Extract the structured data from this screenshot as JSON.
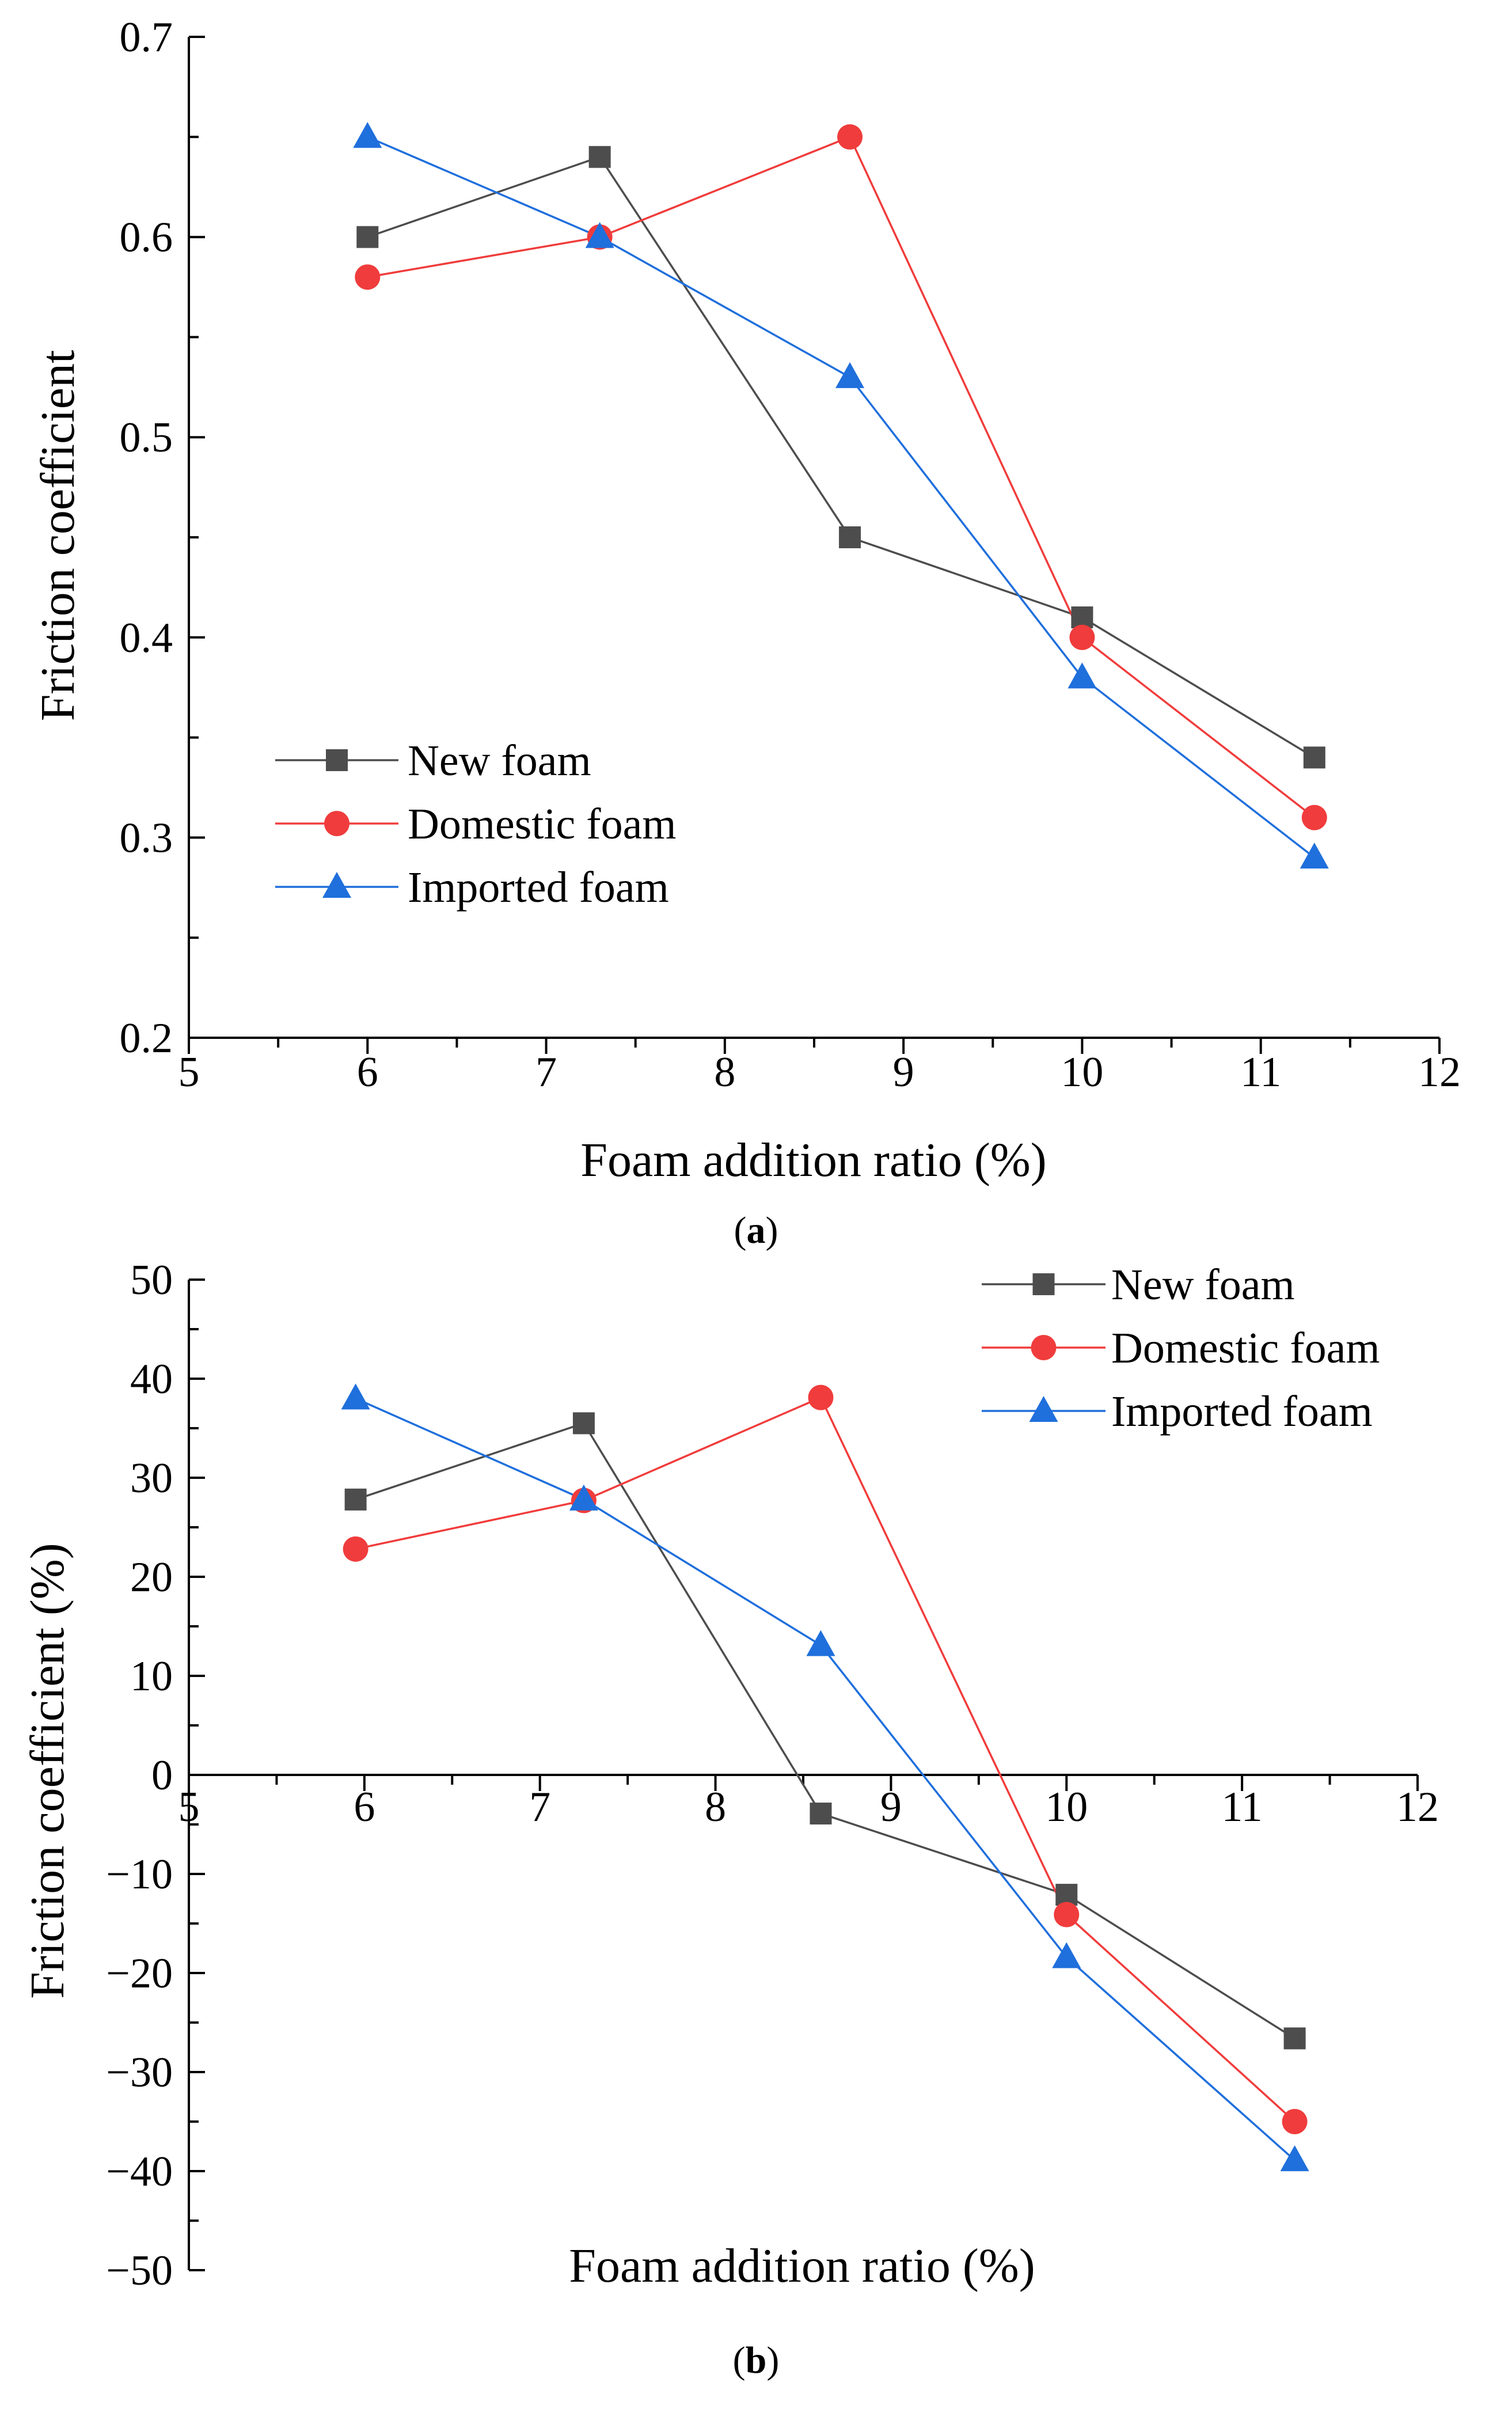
{
  "chart_data": [
    {
      "panel": "a",
      "type": "line",
      "caption_open": "(",
      "caption_letter": "a",
      "caption_close": ")",
      "xlabel": "Foam addition ratio (%)",
      "ylabel": "Friction coefficient",
      "xlim": [
        5,
        12
      ],
      "ylim": [
        0.2,
        0.7
      ],
      "xticks": [
        5,
        6,
        7,
        8,
        9,
        10,
        11,
        12
      ],
      "xtick_labels": [
        "5",
        "6",
        "7",
        "8",
        "9",
        "10",
        "11",
        "12"
      ],
      "yticks": [
        0.2,
        0.3,
        0.4,
        0.5,
        0.6,
        0.7
      ],
      "ytick_labels": [
        "0.2",
        "0.3",
        "0.4",
        "0.5",
        "0.6",
        "0.7"
      ],
      "legend_position": "lower-left",
      "series": [
        {
          "name": "New foam",
          "marker": "square",
          "color": "#4d4d4d",
          "x": [
            6.0,
            7.3,
            8.7,
            10.0,
            11.3
          ],
          "y": [
            0.6,
            0.64,
            0.45,
            0.41,
            0.34
          ]
        },
        {
          "name": "Domestic foam",
          "marker": "circle",
          "color": "#f03c3c",
          "x": [
            6.0,
            7.3,
            8.7,
            10.0,
            11.3
          ],
          "y": [
            0.58,
            0.6,
            0.65,
            0.4,
            0.31
          ]
        },
        {
          "name": "Imported foam",
          "marker": "triangle",
          "color": "#1f6fdc",
          "x": [
            6.0,
            7.3,
            8.7,
            10.0,
            11.3
          ],
          "y": [
            0.65,
            0.6,
            0.53,
            0.38,
            0.29
          ]
        }
      ]
    },
    {
      "panel": "b",
      "type": "line",
      "caption_open": "(",
      "caption_letter": "b",
      "caption_close": ")",
      "xlabel": "Foam addition ratio (%)",
      "ylabel": "Friction coefficient (%)",
      "xlim": [
        5,
        12
      ],
      "ylim": [
        -50,
        50
      ],
      "xticks": [
        5,
        6,
        7,
        8,
        9,
        10,
        11,
        12
      ],
      "xtick_labels": [
        "5",
        "6",
        "7",
        "8",
        "9",
        "10",
        "11",
        "12"
      ],
      "yticks": [
        -50,
        -40,
        -30,
        -20,
        -10,
        0,
        10,
        20,
        30,
        40,
        50
      ],
      "ytick_labels": [
        "−50",
        "−40",
        "−30",
        "−20",
        "−10",
        "0",
        "10",
        "20",
        "30",
        "40",
        "50"
      ],
      "legend_position": "top-right",
      "series": [
        {
          "name": "New foam",
          "marker": "square",
          "color": "#4d4d4d",
          "x": [
            5.95,
            7.25,
            8.6,
            10.0,
            11.3
          ],
          "y": [
            27.8,
            35.5,
            -3.9,
            -12.1,
            -26.6
          ]
        },
        {
          "name": "Domestic foam",
          "marker": "circle",
          "color": "#f03c3c",
          "x": [
            5.95,
            7.25,
            8.6,
            10.0,
            11.3
          ],
          "y": [
            22.8,
            27.7,
            38.1,
            -14.1,
            -35.0
          ]
        },
        {
          "name": "Imported foam",
          "marker": "triangle",
          "color": "#1f6fdc",
          "x": [
            5.95,
            7.25,
            8.6,
            10.0,
            11.3
          ],
          "y": [
            38.0,
            27.8,
            13.1,
            -18.4,
            -38.9
          ]
        }
      ]
    }
  ]
}
